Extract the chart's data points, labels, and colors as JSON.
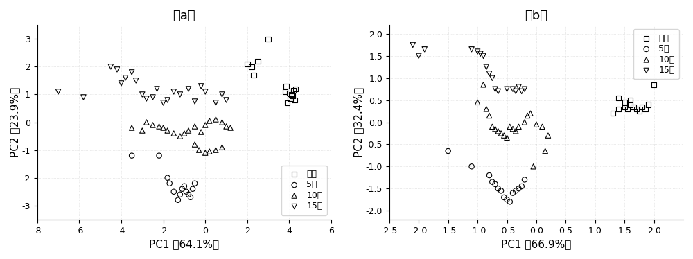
{
  "panel_a": {
    "title": "（a）",
    "xlabel": "PC1 （64.1%）",
    "ylabel": "PC2 （23.9%）",
    "xlim": [
      -8,
      6
    ],
    "ylim": [
      -3.5,
      3.5
    ],
    "xticks": [
      -8,
      -6,
      -4,
      -2,
      0,
      2,
      4,
      6
    ],
    "yticks": [
      -3,
      -2,
      -1,
      0,
      1,
      2,
      3
    ],
    "healthy": [
      [
        3.8,
        1.1
      ],
      [
        4.0,
        1.05
      ],
      [
        4.1,
        1.0
      ],
      [
        4.2,
        1.15
      ],
      [
        4.3,
        1.2
      ],
      [
        4.15,
        0.95
      ],
      [
        4.05,
        0.85
      ],
      [
        3.9,
        0.7
      ],
      [
        4.25,
        0.8
      ],
      [
        3.85,
        1.3
      ],
      [
        2.2,
        2.0
      ],
      [
        2.5,
        2.2
      ],
      [
        2.3,
        1.7
      ],
      [
        2.0,
        2.1
      ],
      [
        3.0,
        3.0
      ]
    ],
    "five": [
      [
        -2.2,
        -1.2
      ],
      [
        -1.8,
        -2.0
      ],
      [
        -1.7,
        -2.2
      ],
      [
        -1.5,
        -2.5
      ],
      [
        -1.3,
        -2.8
      ],
      [
        -1.2,
        -2.6
      ],
      [
        -1.1,
        -2.4
      ],
      [
        -1.0,
        -2.3
      ],
      [
        -0.9,
        -2.5
      ],
      [
        -0.8,
        -2.6
      ],
      [
        -0.7,
        -2.7
      ],
      [
        -0.6,
        -2.4
      ],
      [
        -0.5,
        -2.2
      ],
      [
        -3.5,
        -1.2
      ]
    ],
    "ten": [
      [
        -3.5,
        -0.2
      ],
      [
        -3.0,
        -0.3
      ],
      [
        -2.8,
        0.0
      ],
      [
        -2.5,
        -0.1
      ],
      [
        -2.2,
        -0.15
      ],
      [
        -2.0,
        -0.2
      ],
      [
        -1.8,
        -0.3
      ],
      [
        -1.5,
        -0.4
      ],
      [
        -1.2,
        -0.5
      ],
      [
        -1.0,
        -0.4
      ],
      [
        -0.8,
        -0.3
      ],
      [
        -0.5,
        -0.15
      ],
      [
        0.0,
        -0.1
      ],
      [
        0.2,
        0.05
      ],
      [
        0.5,
        0.1
      ],
      [
        0.8,
        0.0
      ],
      [
        1.0,
        -0.15
      ],
      [
        1.2,
        -0.2
      ],
      [
        -0.2,
        -0.35
      ],
      [
        -0.5,
        -0.8
      ],
      [
        -0.3,
        -1.0
      ],
      [
        0.0,
        -1.1
      ],
      [
        0.2,
        -1.05
      ],
      [
        0.5,
        -1.0
      ],
      [
        0.8,
        -0.9
      ]
    ],
    "fifteen": [
      [
        -7.0,
        1.1
      ],
      [
        -5.8,
        0.9
      ],
      [
        -4.5,
        2.0
      ],
      [
        -4.2,
        1.9
      ],
      [
        -4.0,
        1.4
      ],
      [
        -3.8,
        1.6
      ],
      [
        -3.5,
        1.8
      ],
      [
        -3.3,
        1.5
      ],
      [
        -3.0,
        1.0
      ],
      [
        -2.8,
        0.85
      ],
      [
        -2.5,
        0.9
      ],
      [
        -2.3,
        1.2
      ],
      [
        -2.0,
        0.7
      ],
      [
        -1.8,
        0.8
      ],
      [
        -1.5,
        1.1
      ],
      [
        -1.2,
        1.0
      ],
      [
        -0.8,
        1.2
      ],
      [
        -0.5,
        0.75
      ],
      [
        -0.2,
        1.3
      ],
      [
        0.0,
        1.1
      ],
      [
        0.5,
        0.7
      ],
      [
        0.8,
        1.0
      ],
      [
        1.0,
        0.8
      ]
    ]
  },
  "panel_b": {
    "title": "（b）",
    "xlabel": "PC1 （66.9%）",
    "ylabel": "PC2 （32.4%）",
    "xlim": [
      -2.5,
      2.5
    ],
    "ylim": [
      -2.2,
      2.2
    ],
    "xticks": [
      -2.5,
      -2.0,
      -1.5,
      -1.0,
      -0.5,
      0.0,
      0.5,
      1.0,
      1.5,
      2.0
    ],
    "yticks": [
      -2.0,
      -1.5,
      -1.0,
      -0.5,
      0.0,
      0.5,
      1.0,
      1.5,
      2.0
    ],
    "healthy": [
      [
        1.3,
        0.2
      ],
      [
        1.4,
        0.55
      ],
      [
        1.5,
        0.35
      ],
      [
        1.55,
        0.3
      ],
      [
        1.6,
        0.4
      ],
      [
        1.65,
        0.35
      ],
      [
        1.7,
        0.3
      ],
      [
        1.75,
        0.25
      ],
      [
        1.8,
        0.35
      ],
      [
        1.85,
        0.3
      ],
      [
        1.9,
        0.4
      ],
      [
        1.6,
        0.5
      ],
      [
        1.5,
        0.45
      ],
      [
        1.4,
        0.3
      ],
      [
        2.0,
        0.85
      ]
    ],
    "five": [
      [
        -1.5,
        -0.65
      ],
      [
        -1.1,
        -1.0
      ],
      [
        -0.8,
        -1.2
      ],
      [
        -0.75,
        -1.35
      ],
      [
        -0.7,
        -1.4
      ],
      [
        -0.65,
        -1.5
      ],
      [
        -0.6,
        -1.55
      ],
      [
        -0.55,
        -1.7
      ],
      [
        -0.5,
        -1.75
      ],
      [
        -0.45,
        -1.8
      ],
      [
        -0.4,
        -1.6
      ],
      [
        -0.35,
        -1.55
      ],
      [
        -0.3,
        -1.5
      ],
      [
        -0.25,
        -1.45
      ],
      [
        -0.2,
        -1.3
      ]
    ],
    "ten": [
      [
        -1.0,
        0.45
      ],
      [
        -0.9,
        0.85
      ],
      [
        -0.85,
        0.3
      ],
      [
        -0.8,
        0.15
      ],
      [
        -0.75,
        -0.1
      ],
      [
        -0.7,
        -0.15
      ],
      [
        -0.65,
        -0.2
      ],
      [
        -0.6,
        -0.25
      ],
      [
        -0.55,
        -0.3
      ],
      [
        -0.5,
        -0.35
      ],
      [
        -0.45,
        -0.1
      ],
      [
        -0.4,
        -0.15
      ],
      [
        -0.35,
        -0.2
      ],
      [
        -0.3,
        -0.1
      ],
      [
        -0.2,
        0.0
      ],
      [
        -0.15,
        0.15
      ],
      [
        -0.1,
        0.2
      ],
      [
        0.0,
        -0.05
      ],
      [
        0.1,
        -0.1
      ],
      [
        0.15,
        -0.65
      ],
      [
        0.2,
        -0.3
      ],
      [
        -0.05,
        -1.0
      ]
    ],
    "fifteen": [
      [
        -2.1,
        1.75
      ],
      [
        -2.0,
        1.5
      ],
      [
        -1.9,
        1.65
      ],
      [
        -1.1,
        1.65
      ],
      [
        -1.0,
        1.6
      ],
      [
        -0.95,
        1.55
      ],
      [
        -0.9,
        1.5
      ],
      [
        -0.85,
        1.25
      ],
      [
        -0.8,
        1.1
      ],
      [
        -0.75,
        1.0
      ],
      [
        -0.7,
        0.75
      ],
      [
        -0.65,
        0.7
      ],
      [
        -0.5,
        0.75
      ],
      [
        -0.4,
        0.75
      ],
      [
        -0.35,
        0.7
      ],
      [
        -0.3,
        0.8
      ],
      [
        -0.25,
        0.7
      ],
      [
        -0.2,
        0.75
      ]
    ]
  },
  "legend_labels": [
    "健康",
    "5只",
    "10只",
    "15只"
  ],
  "marker_styles": [
    "s",
    "o",
    "^",
    "v"
  ],
  "font_size": 11,
  "title_font_size": 13,
  "tick_fontsize": 9
}
